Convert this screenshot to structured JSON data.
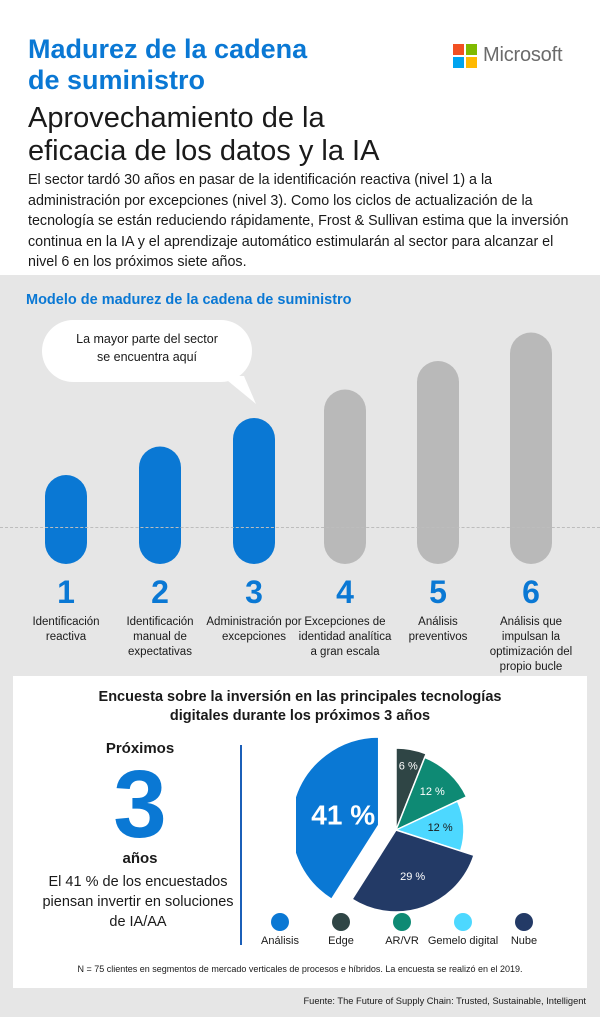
{
  "header": {
    "title_line1": "Madurez de la cadena",
    "title_line2": "de suministro",
    "subtitle_line1": "Aprovechamiento de la",
    "subtitle_line2": "eficacia de los datos y la IA",
    "brand": "Microsoft",
    "intro": "El sector tardó 30 años en pasar de la identificación reactiva (nivel 1) a la administración por excepciones (nivel 3). Como los ciclos de actualización de la tecnología se están reduciendo rápidamente, Frost & Sullivan estima que la inversión continua en la IA y el aprendizaje automático estimularán al sector para alcanzar el nivel 6 en los próximos siete años."
  },
  "colors": {
    "accent_blue": "#0a78d4",
    "bar_gray": "#b9b9b9",
    "panel_gray": "#e6e6e6",
    "logo_red": "#f25022",
    "logo_green": "#7fba00",
    "logo_blue": "#00a4ef",
    "logo_yellow": "#ffb900"
  },
  "model": {
    "title": "Modelo de madurez de la cadena de suministro",
    "callout": "La mayor parte del sector se encuentra aquí",
    "callout_line1": "La mayor parte del sector",
    "callout_line2": "se encuentra aquí"
  },
  "chart_data": [
    {
      "type": "bar",
      "title": "Modelo de madurez de la cadena de suministro",
      "categories": [
        "1",
        "2",
        "3",
        "4",
        "5",
        "6"
      ],
      "category_labels": [
        "Identificación reactiva",
        "Identificación manual de expectativas",
        "Administración por excepciones",
        "Excepciones de identidad analítica a gran escala",
        "Análisis preventivos",
        "Análisis que impulsan la optimización del propio bucle"
      ],
      "values": [
        1,
        2,
        3,
        4,
        5,
        6
      ],
      "current_levels": [
        1,
        2,
        3
      ],
      "future_levels": [
        4,
        5,
        6
      ],
      "bar_colors": [
        "#0a78d4",
        "#0a78d4",
        "#0a78d4",
        "#b9b9b9",
        "#b9b9b9",
        "#b9b9b9"
      ],
      "callout_level": 3
    },
    {
      "type": "pie",
      "title": "Encuesta sobre la inversión en las principales tecnologías digitales durante los próximos 3 años",
      "labels": [
        "Análisis",
        "Edge",
        "AR/VR",
        "Gemelo digital",
        "Nube"
      ],
      "values": [
        41,
        6,
        12,
        12,
        29
      ],
      "value_labels": [
        "41 %",
        "6 %",
        "12 %",
        "12 %",
        "29 %"
      ],
      "colors": [
        "#0a78d4",
        "#2f4545",
        "#0e8a74",
        "#4dd8ff",
        "#233a66"
      ],
      "legend_placement": "bottom"
    }
  ],
  "survey": {
    "title_line1": "Encuesta sobre la inversión en las principales tecnologías",
    "title_line2": "digitales durante los próximos 3 años",
    "next_label": "Próximos",
    "big_number": "3",
    "years_label": "años",
    "stat_text": "El 41 % de los encuestados piensan invertir en soluciones de IA/AA",
    "footnote": "N = 75 clientes en segmentos de mercado verticales de procesos e híbridos. La encuesta se realizó en el 2019.",
    "source": "Fuente: The Future of Supply Chain: Trusted, Sustainable, Intelligent"
  }
}
